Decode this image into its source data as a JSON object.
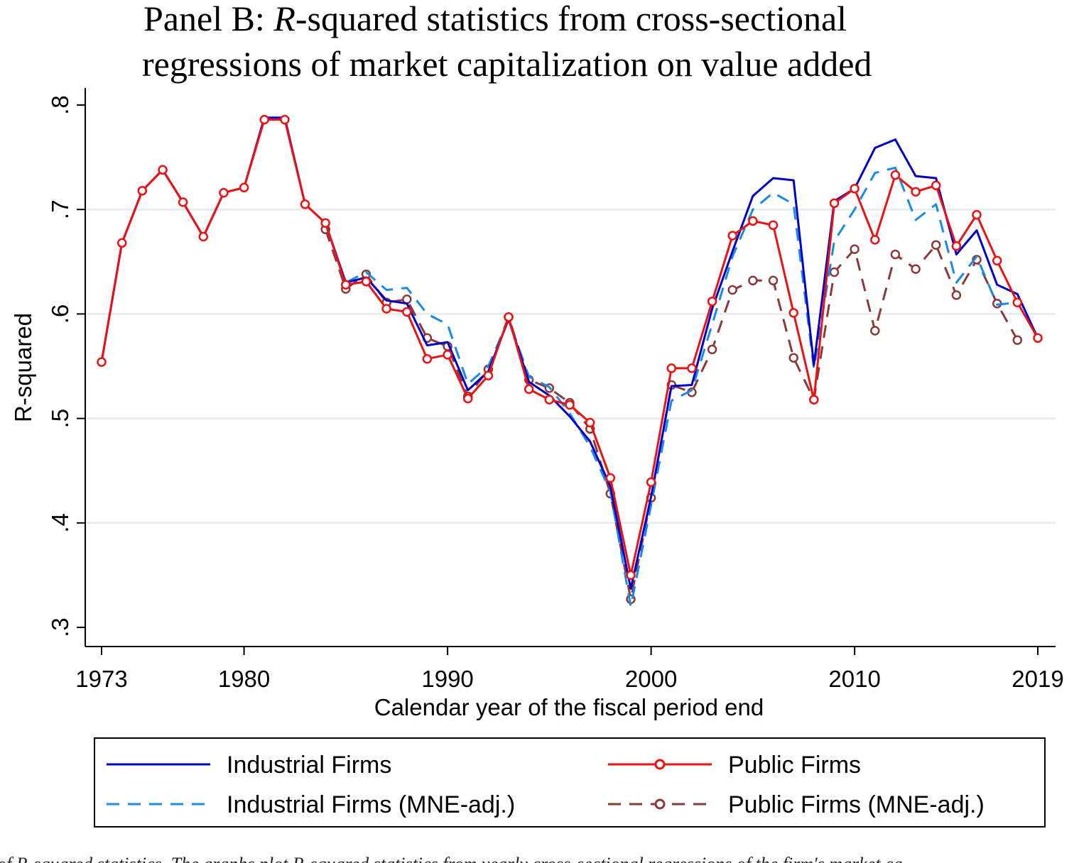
{
  "chart_data": {
    "type": "line",
    "title_prefix": "Panel B: ",
    "title_italic": "R",
    "title_line1_rest": "-squared statistics from cross-sectional",
    "title_line2": "regressions of market capitalization on value added",
    "xlabel": "Calendar year of the fiscal period end",
    "ylabel": "R-squared",
    "xlim": [
      1973,
      2019
    ],
    "ylim": [
      0.3,
      0.8
    ],
    "xticks": [
      1973,
      1980,
      1990,
      2000,
      2010,
      2019
    ],
    "yticks": [
      0.3,
      0.4,
      0.5,
      0.6,
      0.7,
      0.8
    ],
    "ytick_labels": [
      ".3",
      ".4",
      ".5",
      ".6",
      ".7",
      ".8"
    ],
    "grid": true,
    "legend_position": "bottom",
    "x": [
      1973,
      1974,
      1975,
      1976,
      1977,
      1978,
      1979,
      1980,
      1981,
      1982,
      1983,
      1984,
      1985,
      1986,
      1987,
      1988,
      1989,
      1990,
      1991,
      1992,
      1993,
      1994,
      1995,
      1996,
      1997,
      1998,
      1999,
      2000,
      2001,
      2002,
      2003,
      2004,
      2005,
      2006,
      2007,
      2008,
      2009,
      2010,
      2011,
      2012,
      2013,
      2014,
      2015,
      2016,
      2017,
      2018,
      2019
    ],
    "series": [
      {
        "name": "Industrial Firms",
        "color": "#0000cc",
        "style": "solid",
        "marker": false,
        "values": [
          0.554,
          0.668,
          0.718,
          0.738,
          0.707,
          0.674,
          0.716,
          0.721,
          0.788,
          0.788,
          0.705,
          0.687,
          0.63,
          0.635,
          0.613,
          0.61,
          0.57,
          0.573,
          0.527,
          0.545,
          0.595,
          0.535,
          0.522,
          0.502,
          0.478,
          0.435,
          0.337,
          0.425,
          0.531,
          0.532,
          0.605,
          0.66,
          0.713,
          0.73,
          0.728,
          0.551,
          0.708,
          0.72,
          0.759,
          0.767,
          0.732,
          0.73,
          0.657,
          0.68,
          0.628,
          0.619,
          0.577
        ]
      },
      {
        "name": "Public Firms",
        "color": "#ee1111",
        "style": "solid",
        "marker": true,
        "values": [
          0.554,
          0.668,
          0.718,
          0.738,
          0.707,
          0.674,
          0.716,
          0.721,
          0.786,
          0.786,
          0.705,
          0.687,
          0.628,
          0.631,
          0.605,
          0.602,
          0.557,
          0.561,
          0.519,
          0.541,
          0.597,
          0.528,
          0.518,
          0.513,
          0.496,
          0.443,
          0.35,
          0.439,
          0.548,
          0.548,
          0.612,
          0.675,
          0.689,
          0.685,
          0.601,
          0.518,
          0.706,
          0.72,
          0.671,
          0.733,
          0.717,
          0.723,
          0.665,
          0.695,
          0.651,
          0.611,
          0.577
        ]
      },
      {
        "name": "Industrial Firms (MNE-adj.)",
        "color": "#1a8ae6",
        "style": "dashed",
        "marker": false,
        "values": [
          null,
          null,
          null,
          null,
          null,
          null,
          null,
          null,
          null,
          null,
          null,
          0.687,
          0.63,
          0.64,
          0.623,
          0.625,
          0.6,
          0.59,
          0.533,
          0.55,
          0.595,
          0.54,
          0.53,
          0.505,
          0.473,
          0.43,
          0.32,
          0.417,
          0.517,
          0.527,
          0.59,
          0.655,
          0.7,
          0.716,
          0.705,
          0.548,
          0.67,
          0.7,
          0.735,
          0.74,
          0.69,
          0.705,
          0.63,
          0.655,
          0.609,
          0.611,
          null
        ]
      },
      {
        "name": "Public Firms (MNE-adj.)",
        "color": "#8b3a3a",
        "style": "dashed",
        "marker": true,
        "values": [
          null,
          null,
          null,
          null,
          null,
          null,
          null,
          null,
          null,
          null,
          null,
          0.681,
          0.624,
          0.638,
          0.611,
          0.614,
          0.577,
          0.569,
          0.521,
          0.547,
          0.597,
          0.537,
          0.529,
          0.515,
          0.49,
          0.428,
          0.327,
          0.424,
          0.532,
          0.525,
          0.566,
          0.623,
          0.632,
          0.632,
          0.558,
          0.518,
          0.64,
          0.662,
          0.584,
          0.657,
          0.643,
          0.666,
          0.618,
          0.652,
          0.61,
          0.575,
          null
        ]
      }
    ]
  },
  "caption": {
    "p1": "of ",
    "p2": "R",
    "p3": "-squared statistics. The graphs plot ",
    "p4": "R",
    "p5": "-squared statistics from yearly cross-sectional regressions of the firm's market ca"
  }
}
